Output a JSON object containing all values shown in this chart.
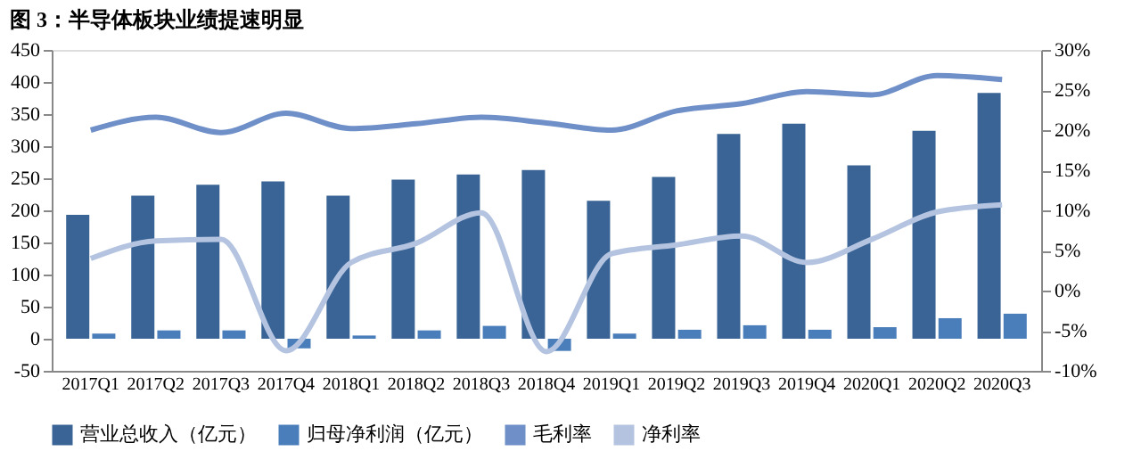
{
  "chart_data": {
    "type": "bar",
    "title": "图 3：半导体板块业绩提速明显",
    "categories": [
      "2017Q1",
      "2017Q2",
      "2017Q3",
      "2017Q4",
      "2018Q1",
      "2018Q2",
      "2018Q3",
      "2018Q4",
      "2019Q1",
      "2019Q2",
      "2019Q3",
      "2019Q4",
      "2020Q1",
      "2020Q2",
      "2020Q3"
    ],
    "series": [
      {
        "name": "营业总收入（亿元）",
        "color": "#3a6495",
        "values": [
          193,
          223,
          240,
          245,
          223,
          248,
          256,
          263,
          215,
          252,
          319,
          335,
          270,
          324,
          383
        ]
      },
      {
        "name": "归母净利润（亿元）",
        "color": "#4a7ebb",
        "values": [
          8,
          13,
          13,
          -15,
          5,
          13,
          20,
          -19,
          8,
          14,
          21,
          14,
          18,
          32,
          39
        ]
      },
      {
        "name": "毛利率",
        "type": "line",
        "axis": "y2",
        "color": "#6f8fc8",
        "values": [
          20.0,
          21.6,
          19.7,
          22.1,
          20.2,
          20.8,
          21.6,
          20.9,
          20.0,
          22.4,
          23.3,
          24.8,
          24.4,
          26.8,
          26.3
        ]
      },
      {
        "name": "净利率",
        "type": "line",
        "axis": "y2",
        "color": "#b4c4e0",
        "values": [
          4.0,
          6.2,
          6.4,
          -7.5,
          3.5,
          5.9,
          9.7,
          -7.6,
          4.6,
          5.7,
          6.8,
          3.5,
          6.4,
          9.8,
          10.7
        ]
      }
    ],
    "ylim": [
      -50,
      450
    ],
    "yticks": [
      -50,
      0,
      50,
      100,
      150,
      200,
      250,
      300,
      350,
      400,
      450
    ],
    "y2lim": [
      -10,
      30
    ],
    "y2ticks": [
      {
        "value": -10,
        "label": "-10%"
      },
      {
        "value": -5,
        "label": "-5%"
      },
      {
        "value": 0,
        "label": "0%"
      },
      {
        "value": 5,
        "label": "5%"
      },
      {
        "value": 10,
        "label": "10%"
      },
      {
        "value": 15,
        "label": "15%"
      },
      {
        "value": 20,
        "label": "20%"
      },
      {
        "value": 25,
        "label": "25%"
      },
      {
        "value": 30,
        "label": "30%"
      }
    ],
    "legend": "bottom",
    "grid": false
  }
}
